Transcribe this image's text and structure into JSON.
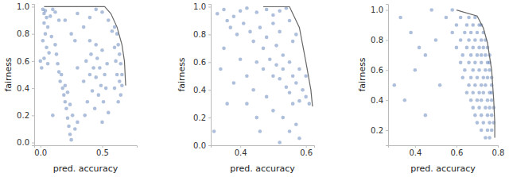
{
  "chart_data": [
    {
      "type": "scatter",
      "x_label": "pred. accuracy",
      "y_label": "fairness",
      "grid": false,
      "xlim": [
        -0.05,
        0.78
      ],
      "ylim": [
        -0.02,
        1.02
      ],
      "xticks": [
        {
          "value": 0,
          "label": "0.0"
        },
        0.5
      ],
      "yticks": [
        {
          "value": 0,
          "label": "0.0"
        },
        0.2,
        0.4,
        0.6,
        0.8,
        {
          "value": 1,
          "label": "1.0"
        }
      ],
      "series": [
        {
          "type": "scatter",
          "marker": "circle",
          "color": "#4c72b0",
          "x": [
            0.02,
            0.03,
            0.04,
            0.05,
            0.03,
            0.06,
            0.04,
            0.02,
            0.05,
            0.07,
            0.03,
            0.06,
            0.01,
            0.08,
            0.1,
            0.12,
            0.15,
            0.09,
            0.12,
            0.13,
            0.14,
            0.15,
            0.16,
            0.18,
            0.19,
            0.2,
            0.21,
            0.22,
            0.23,
            0.24,
            0.25,
            0.17,
            0.2,
            0.22,
            0.24,
            0.26,
            0.28,
            0.35,
            0.37,
            0.38,
            0.4,
            0.41,
            0.42,
            0.43,
            0.44,
            0.45,
            0.46,
            0.47,
            0.48,
            0.49,
            0.5,
            0.51,
            0.52,
            0.53,
            0.54,
            0.55,
            0.45,
            0.4,
            0.36,
            0.5,
            0.6,
            0.62,
            0.63,
            0.64,
            0.65,
            0.66,
            0.66,
            0.65,
            0.63,
            0.61,
            0.6,
            0.62,
            0.64,
            0.6,
            0.3,
            0.4,
            0.45,
            0.5,
            0.55,
            0.35,
            0.25,
            0.58,
            0.2,
            0.3,
            0.28,
            0,
            0.1,
            0.3
          ],
          "values": [
            0.98,
            0.95,
            0.97,
            0.92,
            0.88,
            0.85,
            0.8,
            0.75,
            0.7,
            0.66,
            0.62,
            0.58,
            0.55,
            0.93,
            0.98,
            0.96,
            0.9,
            0.78,
            0.72,
            0.65,
            0.58,
            0.52,
            0.45,
            0.4,
            0.35,
            0.3,
            0.25,
            0.18,
            0.12,
            0.06,
            0.02,
            0.5,
            0.42,
            0.37,
            0.28,
            0.2,
            0.1,
            0.45,
            0.6,
            0.3,
            0.5,
            0.65,
            0.38,
            0.55,
            0.25,
            0.48,
            0.62,
            0.35,
            0.55,
            0.42,
            0.68,
            0.3,
            0.5,
            0.4,
            0.58,
            0.22,
            0.72,
            0.75,
            0.2,
            0.15,
            0.85,
            0.8,
            0.72,
            0.65,
            0.58,
            0.5,
            0.42,
            0.35,
            0.3,
            0.6,
            0.7,
            0.5,
            0.45,
            0.4,
            0.95,
            0.92,
            0.98,
            0.96,
            0.9,
            0.85,
            0.8,
            0.82,
            0.9,
            0.55,
            0.75,
            0.6,
            0.2,
            0.15
          ]
        },
        {
          "type": "line",
          "line_style": "solid",
          "color": "#666666",
          "x": [
            0.03,
            0.52,
            0.57,
            0.62,
            0.66,
            0.68,
            0.69
          ],
          "values": [
            1.0,
            1.0,
            0.95,
            0.85,
            0.72,
            0.6,
            0.42
          ]
        }
      ]
    },
    {
      "type": "scatter",
      "x_label": "pred. accuracy",
      "y_label": "fairness",
      "grid": false,
      "xlim": [
        0.31,
        0.625
      ],
      "ylim": [
        0,
        1.02
      ],
      "xticks": [
        0.4,
        0.6
      ],
      "yticks": [
        {
          "value": 0,
          "label": "0.0"
        },
        0.2,
        0.4,
        0.6,
        0.8,
        {
          "value": 1,
          "label": "1.0"
        }
      ],
      "series": [
        {
          "type": "scatter",
          "marker": "circle",
          "color": "#4c72b0",
          "x": [
            0.33,
            0.35,
            0.36,
            0.38,
            0.4,
            0.42,
            0.45,
            0.48,
            0.5,
            0.52,
            0.54,
            0.37,
            0.39,
            0.41,
            0.43,
            0.44,
            0.46,
            0.47,
            0.48,
            0.5,
            0.51,
            0.52,
            0.53,
            0.55,
            0.56,
            0.57,
            0.45,
            0.47,
            0.49,
            0.5,
            0.51,
            0.52,
            0.53,
            0.54,
            0.55,
            0.56,
            0.57,
            0.58,
            0.59,
            0.6,
            0.58,
            0.56,
            0.55,
            0.6,
            0.61,
            0.42,
            0.4,
            0.44,
            0.48,
            0.5,
            0.53,
            0.57,
            0.55,
            0.45,
            0.38,
            0.35,
            0.34,
            0.58,
            0.52,
            0.46,
            0.42,
            0.36,
            0.32
          ],
          "values": [
            0.95,
            0.98,
            0.9,
            0.93,
            0.97,
            0.99,
            0.96,
            0.98,
            0.94,
            0.97,
            0.99,
            0.85,
            0.8,
            0.88,
            0.82,
            0.75,
            0.85,
            0.7,
            0.78,
            0.88,
            0.72,
            0.82,
            0.65,
            0.9,
            0.75,
            0.8,
            0.6,
            0.55,
            0.62,
            0.5,
            0.58,
            0.48,
            0.55,
            0.42,
            0.6,
            0.5,
            0.45,
            0.55,
            0.4,
            0.35,
            0.32,
            0.3,
            0.38,
            0.5,
            0.3,
            0.5,
            0.62,
            0.4,
            0.35,
            0.25,
            0.2,
            0.15,
            0.1,
            0.2,
            0.45,
            0.7,
            0.55,
            0.05,
            0.02,
            0.1,
            0.3,
            0.3,
            0.1
          ]
        },
        {
          "type": "line",
          "line_style": "solid",
          "color": "#666666",
          "x": [
            0.47,
            0.55,
            0.58,
            0.6,
            0.615,
            0.62
          ],
          "values": [
            1.0,
            1.0,
            0.85,
            0.6,
            0.4,
            0.28
          ]
        }
      ]
    },
    {
      "type": "scatter",
      "x_label": "pred. accuracy",
      "y_label": "fairness",
      "grid": false,
      "xlim": [
        0.27,
        0.8
      ],
      "ylim": [
        0.1,
        1.04
      ],
      "xticks": [
        0.4,
        0.6,
        0.8
      ],
      "yticks": [
        0.2,
        0.4,
        0.6,
        0.8,
        {
          "value": 1,
          "label": "1.0"
        }
      ],
      "series": [
        {
          "type": "scatter",
          "marker": "circle",
          "color": "#4c72b0",
          "x": [
            0.48,
            0.58,
            0.55,
            0.62,
            0.66,
            0.69,
            0.6,
            0.65,
            0.68,
            0.71,
            0.72,
            0.58,
            0.64,
            0.67,
            0.7,
            0.73,
            0.5,
            0.62,
            0.66,
            0.69,
            0.72,
            0.74,
            0.6,
            0.65,
            0.68,
            0.71,
            0.73,
            0.75,
            0.45,
            0.63,
            0.67,
            0.7,
            0.72,
            0.74,
            0.76,
            0.62,
            0.66,
            0.69,
            0.72,
            0.75,
            0.76,
            0.4,
            0.64,
            0.68,
            0.71,
            0.74,
            0.76,
            0.63,
            0.67,
            0.7,
            0.73,
            0.75,
            0.77,
            0.52,
            0.66,
            0.69,
            0.72,
            0.74,
            0.77,
            0.65,
            0.68,
            0.71,
            0.73,
            0.76,
            0.77,
            0.35,
            0.67,
            0.7,
            0.72,
            0.75,
            0.77,
            0.68,
            0.71,
            0.74,
            0.76,
            0.78,
            0.69,
            0.72,
            0.75,
            0.77,
            0.7,
            0.73,
            0.76,
            0.78,
            0.72,
            0.75,
            0.77,
            0.74,
            0.76,
            0.33,
            0.38,
            0.42,
            0.3,
            0.45
          ],
          "values": [
            1.0,
            1.0,
            0.95,
            0.95,
            0.95,
            0.95,
            0.9,
            0.9,
            0.9,
            0.9,
            0.9,
            0.85,
            0.85,
            0.85,
            0.85,
            0.85,
            0.8,
            0.8,
            0.8,
            0.8,
            0.8,
            0.8,
            0.75,
            0.75,
            0.75,
            0.75,
            0.75,
            0.75,
            0.7,
            0.7,
            0.7,
            0.7,
            0.7,
            0.7,
            0.7,
            0.65,
            0.65,
            0.65,
            0.65,
            0.65,
            0.65,
            0.6,
            0.6,
            0.6,
            0.6,
            0.6,
            0.6,
            0.55,
            0.55,
            0.55,
            0.55,
            0.55,
            0.55,
            0.5,
            0.5,
            0.5,
            0.5,
            0.5,
            0.5,
            0.45,
            0.45,
            0.45,
            0.45,
            0.45,
            0.45,
            0.4,
            0.4,
            0.4,
            0.4,
            0.4,
            0.4,
            0.35,
            0.35,
            0.35,
            0.35,
            0.35,
            0.3,
            0.3,
            0.3,
            0.3,
            0.25,
            0.25,
            0.25,
            0.25,
            0.2,
            0.2,
            0.2,
            0.15,
            0.15,
            0.95,
            0.85,
            0.75,
            0.5,
            0.3
          ]
        },
        {
          "type": "line",
          "line_style": "solid",
          "color": "#666666",
          "x": [
            0.6,
            0.7,
            0.73,
            0.75,
            0.77,
            0.78,
            0.785,
            0.785
          ],
          "values": [
            1.0,
            0.96,
            0.88,
            0.78,
            0.6,
            0.4,
            0.25,
            0.15
          ]
        }
      ]
    }
  ]
}
